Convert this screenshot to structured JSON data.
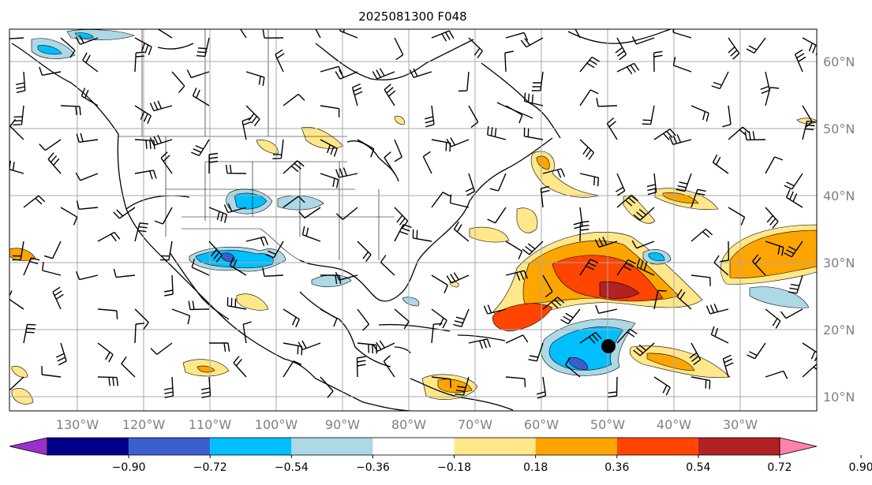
{
  "title": "2025081300 F048",
  "lat_labels": [
    "60°N",
    "50°N",
    "40°N",
    "30°N",
    "20°N",
    "10°N"
  ],
  "lon_labels": [
    "130°W",
    "120°W",
    "110°W",
    "100°W",
    "90°W",
    "80°W",
    "70°W",
    "60°W",
    "50°W",
    "40°W",
    "30°W"
  ],
  "colorbar": {
    "ticks": [
      "−0.90",
      "−0.72",
      "−0.54",
      "−0.36",
      "−0.18",
      "0.18",
      "0.36",
      "0.54",
      "0.72",
      "0.90"
    ],
    "colors": [
      "#9932cc",
      "#00008b",
      "#3a5fcd",
      "#00bfff",
      "#add8e6",
      "#ffffff",
      "#ffe78a",
      "#ffa500",
      "#ff4500",
      "#b22222",
      "#ff82ab"
    ]
  },
  "storm_marker": {
    "lon": -51,
    "lat": 18
  }
}
